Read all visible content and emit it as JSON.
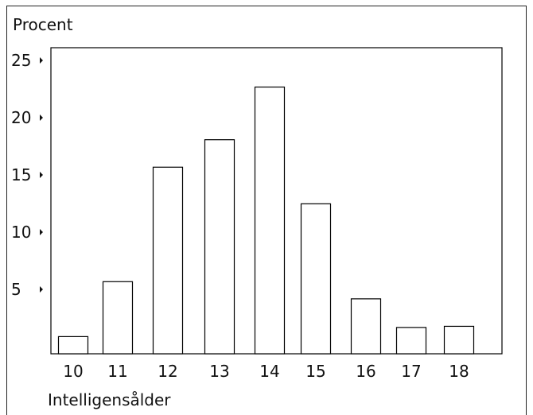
{
  "chart_data": {
    "type": "bar",
    "ylabel": "Procent",
    "xlabel": "Intelligensålder",
    "categories": [
      "10",
      "11",
      "12",
      "13",
      "14",
      "15",
      "16",
      "17",
      "18"
    ],
    "values": [
      1.5,
      6.3,
      16.3,
      18.7,
      23.3,
      13.1,
      4.8,
      2.3,
      2.4
    ],
    "ylim": [
      0,
      25
    ],
    "yticks": [
      "5",
      "10",
      "15",
      "20",
      "25"
    ],
    "ytick_values": [
      5,
      10,
      15,
      20,
      25
    ],
    "grid": false,
    "legend": "none",
    "bar_fill": "#ffffff",
    "bar_stroke": "#000000"
  }
}
